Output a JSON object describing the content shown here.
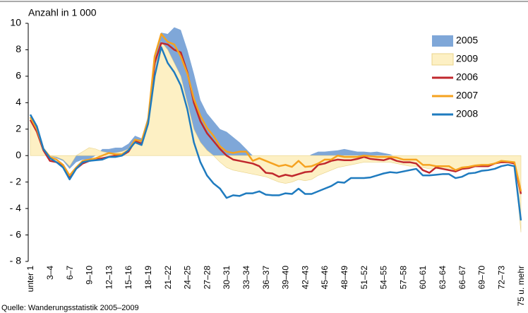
{
  "chart_data": {
    "type": "line",
    "y_label": "Anzahl in 1 000",
    "source": "Quelle: Wanderungsstatistik 2005–2009",
    "categories": [
      "unter 1",
      null,
      null,
      "3–4",
      null,
      null,
      "6–7",
      null,
      null,
      "9–10",
      null,
      null,
      "12–13",
      null,
      null,
      "15–16",
      null,
      null,
      "18–19",
      null,
      null,
      "21–22",
      null,
      null,
      "24–25",
      null,
      null,
      "27–28",
      null,
      null,
      "30–31",
      null,
      null,
      "33–34",
      null,
      null,
      "36–37",
      null,
      null,
      "39–40",
      null,
      null,
      "42–43",
      null,
      null,
      "45–46",
      null,
      null,
      "48–49",
      null,
      null,
      "51–52",
      null,
      null,
      "54–55",
      null,
      null,
      "57–58",
      null,
      null,
      "60–61",
      null,
      null,
      "63–64",
      null,
      null,
      "66–67",
      null,
      null,
      "69–70",
      null,
      null,
      "72–73",
      null,
      null,
      "75 u. mehr"
    ],
    "ylim": [
      -8,
      10
    ],
    "yticks": [
      {
        "value": -8,
        "label": "- 8"
      },
      {
        "value": -6,
        "label": "- 6"
      },
      {
        "value": -4,
        "label": "- 4"
      },
      {
        "value": -2,
        "label": "- 2"
      },
      0,
      2,
      4,
      6,
      8,
      10
    ],
    "legend": "top-right",
    "series": [
      {
        "name": "2005",
        "style": "area",
        "color": "#7fa7d8",
        "values": [
          3.0,
          2.2,
          0.6,
          0.0,
          -0.2,
          -0.4,
          -1.0,
          -0.5,
          -0.3,
          -0.3,
          0.0,
          0.5,
          0.5,
          0.6,
          0.6,
          0.9,
          1.5,
          1.3,
          3.0,
          7.6,
          9.3,
          9.2,
          9.7,
          9.5,
          8.0,
          6.2,
          4.2,
          3.2,
          2.6,
          2.0,
          1.8,
          1.4,
          1.0,
          0.5,
          0.0,
          -0.2,
          -0.3,
          -0.4,
          -0.5,
          -0.5,
          -0.5,
          -0.3,
          -0.2,
          0.1,
          0.3,
          0.3,
          0.35,
          0.4,
          0.5,
          0.4,
          0.3,
          0.3,
          0.25,
          0.3,
          0.2,
          0.1,
          -0.1,
          -0.2,
          -0.3,
          -0.4,
          -0.6,
          -0.7,
          -0.7,
          -0.8,
          -0.8,
          -0.9,
          -0.8,
          -0.7,
          -0.6,
          -0.6,
          -0.5,
          -0.4,
          -0.4,
          -0.3,
          -0.4,
          -2.5
        ]
      },
      {
        "name": "2009",
        "style": "area",
        "color": "#fdf0c4",
        "values": [
          2.9,
          2.0,
          0.6,
          0.0,
          -0.1,
          -0.3,
          -0.8,
          0.0,
          0.3,
          0.6,
          0.5,
          0.3,
          0.2,
          0.2,
          0.3,
          0.5,
          1.0,
          0.9,
          2.5,
          6.5,
          8.6,
          8.0,
          7.0,
          6.0,
          4.0,
          2.0,
          1.0,
          0.4,
          0.0,
          -0.5,
          -0.9,
          -1.1,
          -1.2,
          -1.3,
          -1.4,
          -1.5,
          -1.6,
          -1.8,
          -2.0,
          -2.1,
          -2.0,
          -1.8,
          -1.9,
          -1.8,
          -1.5,
          -1.3,
          -1.1,
          -0.9,
          -0.8,
          -0.7,
          -0.6,
          -0.5,
          -0.5,
          -0.5,
          -0.5,
          -0.5,
          -0.6,
          -0.7,
          -0.8,
          -0.8,
          -0.9,
          -1.0,
          -1.0,
          -1.0,
          -1.0,
          -1.1,
          -1.0,
          -0.9,
          -0.8,
          -0.7,
          -0.7,
          -0.6,
          -0.5,
          -0.4,
          -0.5,
          -5.8
        ]
      },
      {
        "name": "2006",
        "style": "line",
        "color": "#c0282d",
        "values": [
          2.7,
          1.8,
          0.4,
          -0.4,
          -0.5,
          -0.8,
          -1.6,
          -1.0,
          -0.6,
          -0.4,
          -0.3,
          -0.2,
          -0.1,
          0.0,
          0.0,
          0.3,
          1.1,
          0.9,
          2.5,
          7.0,
          8.5,
          8.4,
          8.0,
          7.8,
          6.3,
          4.0,
          2.6,
          1.7,
          1.1,
          0.5,
          0.0,
          -0.3,
          -0.4,
          -0.5,
          -0.6,
          -0.8,
          -1.3,
          -1.35,
          -1.6,
          -1.45,
          -1.55,
          -1.4,
          -1.25,
          -1.2,
          -0.7,
          -0.6,
          -0.4,
          -0.3,
          -0.35,
          -0.35,
          -0.25,
          -0.1,
          -0.25,
          -0.3,
          -0.35,
          -0.2,
          -0.4,
          -0.5,
          -0.5,
          -0.6,
          -1.1,
          -1.3,
          -0.9,
          -1.0,
          -1.1,
          -1.2,
          -1.0,
          -0.95,
          -0.8,
          -0.8,
          -0.8,
          -0.6,
          -0.5,
          -0.5,
          -0.6,
          -2.9
        ]
      },
      {
        "name": "2007",
        "style": "line",
        "color": "#f5a21f",
        "values": [
          2.9,
          2.0,
          0.5,
          -0.1,
          -0.3,
          -0.7,
          -1.5,
          -0.9,
          -0.4,
          -0.3,
          -0.2,
          0.0,
          0.2,
          0.1,
          0.1,
          0.4,
          1.2,
          1.1,
          2.7,
          7.5,
          9.2,
          8.6,
          8.4,
          7.5,
          6.2,
          4.3,
          3.0,
          2.1,
          1.5,
          0.7,
          0.3,
          0.2,
          0.3,
          0.3,
          -0.4,
          -0.2,
          -0.4,
          -0.6,
          -0.8,
          -0.7,
          -0.85,
          -0.4,
          -0.85,
          -0.8,
          -0.6,
          -0.3,
          -0.3,
          0.0,
          -0.1,
          -0.1,
          -0.1,
          0.0,
          -0.05,
          -0.1,
          -0.1,
          -0.1,
          -0.15,
          -0.3,
          -0.3,
          -0.3,
          -0.7,
          -0.7,
          -0.8,
          -0.8,
          -0.8,
          -1.1,
          -0.9,
          -0.85,
          -0.75,
          -0.7,
          -0.7,
          -0.6,
          -0.4,
          -0.45,
          -0.5,
          -2.7
        ]
      },
      {
        "name": "2008",
        "style": "line",
        "color": "#1f7bbf",
        "values": [
          3.1,
          2.2,
          0.5,
          -0.2,
          -0.5,
          -0.9,
          -1.8,
          -1.0,
          -0.5,
          -0.4,
          -0.35,
          -0.3,
          -0.1,
          -0.1,
          0.0,
          0.4,
          1.0,
          0.8,
          2.4,
          6.0,
          8.2,
          7.0,
          6.3,
          5.3,
          3.5,
          1.0,
          -0.5,
          -1.5,
          -2.1,
          -2.5,
          -3.2,
          -3.0,
          -3.05,
          -2.85,
          -2.85,
          -2.7,
          -2.95,
          -3.0,
          -3.0,
          -2.85,
          -2.9,
          -2.5,
          -2.9,
          -2.9,
          -2.7,
          -2.5,
          -2.3,
          -2.0,
          -2.05,
          -1.7,
          -1.7,
          -1.7,
          -1.65,
          -1.5,
          -1.35,
          -1.25,
          -1.3,
          -1.2,
          -1.1,
          -1.0,
          -1.5,
          -1.5,
          -1.45,
          -1.4,
          -1.4,
          -1.7,
          -1.6,
          -1.35,
          -1.3,
          -1.15,
          -1.1,
          -1.0,
          -0.8,
          -0.7,
          -0.8,
          -4.9
        ]
      }
    ]
  }
}
